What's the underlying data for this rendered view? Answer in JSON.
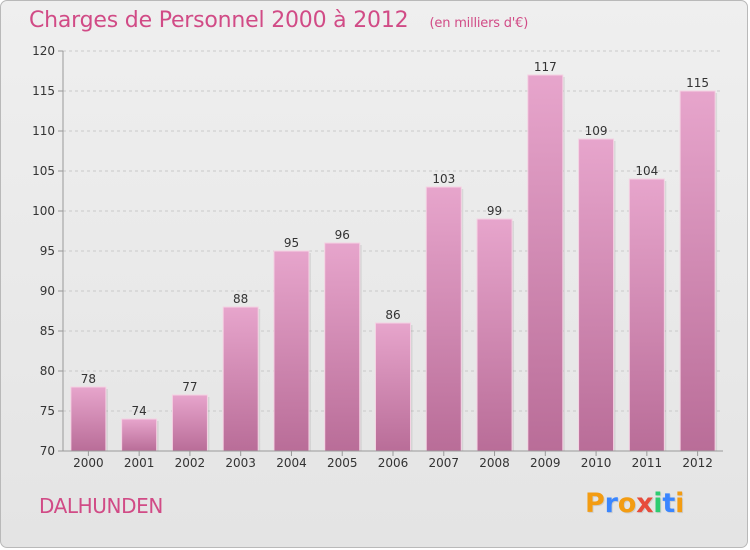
{
  "header": {
    "title": "Charges de Personnel 2000 à 2012",
    "subtitle": "(en milliers d'€)"
  },
  "footer": {
    "town": "DALHUNDEN",
    "logo_text": "Proxiti"
  },
  "colors": {
    "accent": "#d14b86",
    "bar_top": "#e7a5cc",
    "bar_bottom": "#b96d98",
    "grid": "#c9c9c9",
    "axis": "#999999",
    "label": "#333333",
    "logo_letters": [
      "#f39c12",
      "#3a86ff",
      "#f39c12",
      "#e74c3c",
      "#2ecc71",
      "#3a86ff",
      "#f39c12"
    ]
  },
  "chart_data": {
    "type": "bar",
    "categories": [
      "2000",
      "2001",
      "2002",
      "2003",
      "2004",
      "2005",
      "2006",
      "2007",
      "2008",
      "2009",
      "2010",
      "2011",
      "2012"
    ],
    "values": [
      78,
      74,
      77,
      88,
      95,
      96,
      86,
      103,
      99,
      117,
      109,
      104,
      115
    ],
    "title": "Charges de Personnel 2000 à 2012",
    "subtitle": "(en milliers d'€)",
    "xlabel": "",
    "ylabel": "",
    "ylim": [
      70,
      120
    ],
    "yticks": [
      70,
      75,
      80,
      85,
      90,
      95,
      100,
      105,
      110,
      115,
      120
    ],
    "grid": true,
    "legend": "none"
  }
}
